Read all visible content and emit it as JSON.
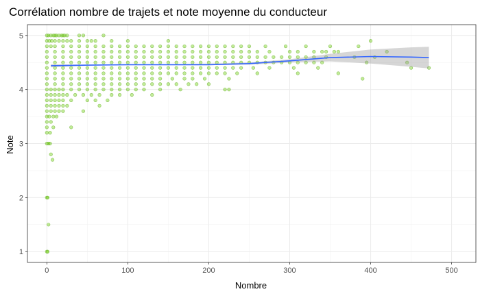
{
  "chart_data": {
    "type": "scatter",
    "title": "Corrélation nombre de trajets et note moyenne du conducteur",
    "xlabel": "Nombre",
    "ylabel": "Note",
    "xlim": [
      -24,
      530
    ],
    "ylim": [
      0.8,
      5.2
    ],
    "x_ticks": [
      0,
      100,
      200,
      300,
      400,
      500
    ],
    "y_ticks": [
      1,
      2,
      3,
      4,
      5
    ],
    "x_tick_labels": [
      "0",
      "100",
      "200",
      "300",
      "400",
      "500"
    ],
    "y_tick_labels": [
      "1",
      "2",
      "3",
      "4",
      "5"
    ],
    "grid": true,
    "legend": "none",
    "point_color": "#66cc00",
    "point_edge_color": "#4a9c00",
    "point_opacity": 0.4,
    "point_note": "thousands of overlapping points; representative sample captured",
    "points": [
      [
        0,
        5.0
      ],
      [
        2,
        5.0
      ],
      [
        5,
        5.0
      ],
      [
        8,
        5.0
      ],
      [
        10,
        5.0
      ],
      [
        12,
        5.0
      ],
      [
        15,
        5.0
      ],
      [
        18,
        5.0
      ],
      [
        20,
        5.0
      ],
      [
        22,
        5.0
      ],
      [
        25,
        5.0
      ],
      [
        40,
        5.0
      ],
      [
        45,
        5.0
      ],
      [
        70,
        5.0
      ],
      [
        0,
        4.9
      ],
      [
        3,
        4.9
      ],
      [
        6,
        4.9
      ],
      [
        10,
        4.9
      ],
      [
        15,
        4.9
      ],
      [
        20,
        4.9
      ],
      [
        25,
        4.9
      ],
      [
        30,
        4.9
      ],
      [
        40,
        4.9
      ],
      [
        50,
        4.9
      ],
      [
        55,
        4.9
      ],
      [
        60,
        4.9
      ],
      [
        80,
        4.9
      ],
      [
        100,
        4.9
      ],
      [
        150,
        4.9
      ],
      [
        400,
        4.9
      ],
      [
        0,
        4.8
      ],
      [
        5,
        4.8
      ],
      [
        10,
        4.8
      ],
      [
        20,
        4.8
      ],
      [
        30,
        4.8
      ],
      [
        40,
        4.8
      ],
      [
        50,
        4.8
      ],
      [
        60,
        4.8
      ],
      [
        70,
        4.8
      ],
      [
        80,
        4.8
      ],
      [
        90,
        4.8
      ],
      [
        100,
        4.8
      ],
      [
        110,
        4.8
      ],
      [
        120,
        4.8
      ],
      [
        130,
        4.8
      ],
      [
        140,
        4.8
      ],
      [
        150,
        4.8
      ],
      [
        160,
        4.8
      ],
      [
        170,
        4.8
      ],
      [
        180,
        4.8
      ],
      [
        190,
        4.8
      ],
      [
        200,
        4.8
      ],
      [
        210,
        4.8
      ],
      [
        220,
        4.8
      ],
      [
        230,
        4.8
      ],
      [
        240,
        4.8
      ],
      [
        250,
        4.8
      ],
      [
        270,
        4.8
      ],
      [
        295,
        4.8
      ],
      [
        320,
        4.8
      ],
      [
        350,
        4.8
      ],
      [
        385,
        4.8
      ],
      [
        0,
        4.7
      ],
      [
        10,
        4.7
      ],
      [
        20,
        4.7
      ],
      [
        30,
        4.7
      ],
      [
        40,
        4.7
      ],
      [
        50,
        4.7
      ],
      [
        60,
        4.7
      ],
      [
        70,
        4.7
      ],
      [
        80,
        4.7
      ],
      [
        90,
        4.7
      ],
      [
        100,
        4.7
      ],
      [
        110,
        4.7
      ],
      [
        120,
        4.7
      ],
      [
        130,
        4.7
      ],
      [
        140,
        4.7
      ],
      [
        150,
        4.7
      ],
      [
        160,
        4.7
      ],
      [
        170,
        4.7
      ],
      [
        180,
        4.7
      ],
      [
        190,
        4.7
      ],
      [
        200,
        4.7
      ],
      [
        210,
        4.7
      ],
      [
        220,
        4.7
      ],
      [
        230,
        4.7
      ],
      [
        240,
        4.7
      ],
      [
        250,
        4.7
      ],
      [
        260,
        4.7
      ],
      [
        275,
        4.7
      ],
      [
        300,
        4.7
      ],
      [
        310,
        4.7
      ],
      [
        330,
        4.7
      ],
      [
        340,
        4.7
      ],
      [
        345,
        4.7
      ],
      [
        355,
        4.7
      ],
      [
        360,
        4.7
      ],
      [
        420,
        4.7
      ],
      [
        0,
        4.6
      ],
      [
        10,
        4.6
      ],
      [
        20,
        4.6
      ],
      [
        30,
        4.6
      ],
      [
        40,
        4.6
      ],
      [
        50,
        4.6
      ],
      [
        60,
        4.6
      ],
      [
        70,
        4.6
      ],
      [
        80,
        4.6
      ],
      [
        90,
        4.6
      ],
      [
        100,
        4.6
      ],
      [
        110,
        4.6
      ],
      [
        120,
        4.6
      ],
      [
        130,
        4.6
      ],
      [
        140,
        4.6
      ],
      [
        150,
        4.6
      ],
      [
        160,
        4.6
      ],
      [
        170,
        4.6
      ],
      [
        180,
        4.6
      ],
      [
        190,
        4.6
      ],
      [
        200,
        4.6
      ],
      [
        210,
        4.6
      ],
      [
        220,
        4.6
      ],
      [
        230,
        4.6
      ],
      [
        240,
        4.6
      ],
      [
        250,
        4.6
      ],
      [
        260,
        4.6
      ],
      [
        270,
        4.6
      ],
      [
        280,
        4.6
      ],
      [
        290,
        4.6
      ],
      [
        300,
        4.6
      ],
      [
        310,
        4.6
      ],
      [
        320,
        4.6
      ],
      [
        330,
        4.6
      ],
      [
        345,
        4.6
      ],
      [
        380,
        4.6
      ],
      [
        405,
        4.6
      ],
      [
        0,
        4.5
      ],
      [
        10,
        4.5
      ],
      [
        20,
        4.5
      ],
      [
        30,
        4.5
      ],
      [
        40,
        4.5
      ],
      [
        50,
        4.5
      ],
      [
        60,
        4.5
      ],
      [
        70,
        4.5
      ],
      [
        80,
        4.5
      ],
      [
        90,
        4.5
      ],
      [
        100,
        4.5
      ],
      [
        110,
        4.5
      ],
      [
        120,
        4.5
      ],
      [
        130,
        4.5
      ],
      [
        140,
        4.5
      ],
      [
        150,
        4.5
      ],
      [
        160,
        4.5
      ],
      [
        170,
        4.5
      ],
      [
        180,
        4.5
      ],
      [
        190,
        4.5
      ],
      [
        200,
        4.5
      ],
      [
        210,
        4.5
      ],
      [
        220,
        4.5
      ],
      [
        230,
        4.5
      ],
      [
        240,
        4.5
      ],
      [
        250,
        4.5
      ],
      [
        260,
        4.5
      ],
      [
        270,
        4.5
      ],
      [
        280,
        4.5
      ],
      [
        290,
        4.5
      ],
      [
        300,
        4.5
      ],
      [
        310,
        4.5
      ],
      [
        320,
        4.5
      ],
      [
        330,
        4.5
      ],
      [
        340,
        4.5
      ],
      [
        395,
        4.5
      ],
      [
        445,
        4.5
      ],
      [
        0,
        4.4
      ],
      [
        10,
        4.4
      ],
      [
        20,
        4.4
      ],
      [
        30,
        4.4
      ],
      [
        40,
        4.4
      ],
      [
        50,
        4.4
      ],
      [
        60,
        4.4
      ],
      [
        70,
        4.4
      ],
      [
        80,
        4.4
      ],
      [
        90,
        4.4
      ],
      [
        100,
        4.4
      ],
      [
        110,
        4.4
      ],
      [
        120,
        4.4
      ],
      [
        130,
        4.4
      ],
      [
        140,
        4.4
      ],
      [
        150,
        4.4
      ],
      [
        160,
        4.4
      ],
      [
        170,
        4.4
      ],
      [
        180,
        4.4
      ],
      [
        190,
        4.4
      ],
      [
        200,
        4.4
      ],
      [
        210,
        4.4
      ],
      [
        220,
        4.4
      ],
      [
        230,
        4.4
      ],
      [
        240,
        4.4
      ],
      [
        255,
        4.4
      ],
      [
        275,
        4.4
      ],
      [
        305,
        4.4
      ],
      [
        335,
        4.4
      ],
      [
        450,
        4.4
      ],
      [
        472,
        4.4
      ],
      [
        0,
        4.3
      ],
      [
        10,
        4.3
      ],
      [
        20,
        4.3
      ],
      [
        30,
        4.3
      ],
      [
        40,
        4.3
      ],
      [
        50,
        4.3
      ],
      [
        60,
        4.3
      ],
      [
        70,
        4.3
      ],
      [
        80,
        4.3
      ],
      [
        90,
        4.3
      ],
      [
        100,
        4.3
      ],
      [
        110,
        4.3
      ],
      [
        120,
        4.3
      ],
      [
        130,
        4.3
      ],
      [
        140,
        4.3
      ],
      [
        150,
        4.3
      ],
      [
        160,
        4.3
      ],
      [
        170,
        4.3
      ],
      [
        180,
        4.3
      ],
      [
        190,
        4.3
      ],
      [
        200,
        4.3
      ],
      [
        210,
        4.3
      ],
      [
        220,
        4.3
      ],
      [
        235,
        4.3
      ],
      [
        260,
        4.3
      ],
      [
        310,
        4.3
      ],
      [
        360,
        4.3
      ],
      [
        0,
        4.2
      ],
      [
        10,
        4.2
      ],
      [
        20,
        4.2
      ],
      [
        30,
        4.2
      ],
      [
        40,
        4.2
      ],
      [
        50,
        4.2
      ],
      [
        60,
        4.2
      ],
      [
        70,
        4.2
      ],
      [
        80,
        4.2
      ],
      [
        90,
        4.2
      ],
      [
        100,
        4.2
      ],
      [
        110,
        4.2
      ],
      [
        120,
        4.2
      ],
      [
        130,
        4.2
      ],
      [
        140,
        4.2
      ],
      [
        155,
        4.2
      ],
      [
        170,
        4.2
      ],
      [
        180,
        4.2
      ],
      [
        195,
        4.2
      ],
      [
        225,
        4.2
      ],
      [
        390,
        4.2
      ],
      [
        0,
        4.1
      ],
      [
        10,
        4.1
      ],
      [
        20,
        4.1
      ],
      [
        30,
        4.1
      ],
      [
        40,
        4.1
      ],
      [
        50,
        4.1
      ],
      [
        60,
        4.1
      ],
      [
        70,
        4.1
      ],
      [
        80,
        4.1
      ],
      [
        90,
        4.1
      ],
      [
        100,
        4.1
      ],
      [
        110,
        4.1
      ],
      [
        120,
        4.1
      ],
      [
        130,
        4.1
      ],
      [
        140,
        4.1
      ],
      [
        150,
        4.1
      ],
      [
        160,
        4.1
      ],
      [
        175,
        4.1
      ],
      [
        185,
        4.1
      ],
      [
        200,
        4.1
      ],
      [
        0,
        4.0
      ],
      [
        5,
        4.0
      ],
      [
        10,
        4.0
      ],
      [
        15,
        4.0
      ],
      [
        20,
        4.0
      ],
      [
        30,
        4.0
      ],
      [
        40,
        4.0
      ],
      [
        50,
        4.0
      ],
      [
        60,
        4.0
      ],
      [
        70,
        4.0
      ],
      [
        80,
        4.0
      ],
      [
        90,
        4.0
      ],
      [
        100,
        4.0
      ],
      [
        110,
        4.0
      ],
      [
        120,
        4.0
      ],
      [
        140,
        4.0
      ],
      [
        165,
        4.0
      ],
      [
        220,
        4.0
      ],
      [
        225,
        4.0
      ],
      [
        0,
        3.9
      ],
      [
        5,
        3.9
      ],
      [
        10,
        3.9
      ],
      [
        15,
        3.9
      ],
      [
        20,
        3.9
      ],
      [
        25,
        3.9
      ],
      [
        35,
        3.9
      ],
      [
        45,
        3.9
      ],
      [
        55,
        3.9
      ],
      [
        65,
        3.9
      ],
      [
        80,
        3.9
      ],
      [
        90,
        3.9
      ],
      [
        105,
        3.9
      ],
      [
        130,
        3.9
      ],
      [
        0,
        3.8
      ],
      [
        5,
        3.8
      ],
      [
        10,
        3.8
      ],
      [
        15,
        3.8
      ],
      [
        20,
        3.8
      ],
      [
        30,
        3.8
      ],
      [
        50,
        3.8
      ],
      [
        60,
        3.8
      ],
      [
        75,
        3.8
      ],
      [
        0,
        3.7
      ],
      [
        5,
        3.7
      ],
      [
        10,
        3.7
      ],
      [
        15,
        3.7
      ],
      [
        20,
        3.7
      ],
      [
        25,
        3.7
      ],
      [
        65,
        3.7
      ],
      [
        0,
        3.6
      ],
      [
        5,
        3.6
      ],
      [
        10,
        3.6
      ],
      [
        15,
        3.6
      ],
      [
        20,
        3.6
      ],
      [
        45,
        3.6
      ],
      [
        0,
        3.5
      ],
      [
        3,
        3.5
      ],
      [
        8,
        3.5
      ],
      [
        12,
        3.5
      ],
      [
        0,
        3.4
      ],
      [
        5,
        3.4
      ],
      [
        0,
        3.3
      ],
      [
        8,
        3.3
      ],
      [
        30,
        3.3
      ],
      [
        0,
        3.2
      ],
      [
        4,
        3.2
      ],
      [
        0,
        3.0
      ],
      [
        2,
        3.0
      ],
      [
        4,
        3.0
      ],
      [
        5,
        2.8
      ],
      [
        7,
        2.7
      ],
      [
        0,
        2.0
      ],
      [
        1,
        2.0
      ],
      [
        2,
        1.5
      ],
      [
        0,
        1.0
      ],
      [
        1,
        1.0
      ]
    ],
    "trend_line": {
      "type": "loess",
      "color": "#3366ff",
      "x": [
        5,
        50,
        100,
        150,
        200,
        250,
        300,
        350,
        400,
        450,
        472
      ],
      "y": [
        4.44,
        4.45,
        4.46,
        4.46,
        4.46,
        4.48,
        4.53,
        4.59,
        4.61,
        4.6,
        4.59
      ],
      "ci_lower": [
        4.41,
        4.44,
        4.45,
        4.45,
        4.45,
        4.46,
        4.5,
        4.52,
        4.48,
        4.42,
        4.39
      ],
      "ci_upper": [
        4.47,
        4.46,
        4.47,
        4.47,
        4.48,
        4.5,
        4.56,
        4.66,
        4.74,
        4.78,
        4.79
      ],
      "ci_color": "#999999"
    }
  }
}
